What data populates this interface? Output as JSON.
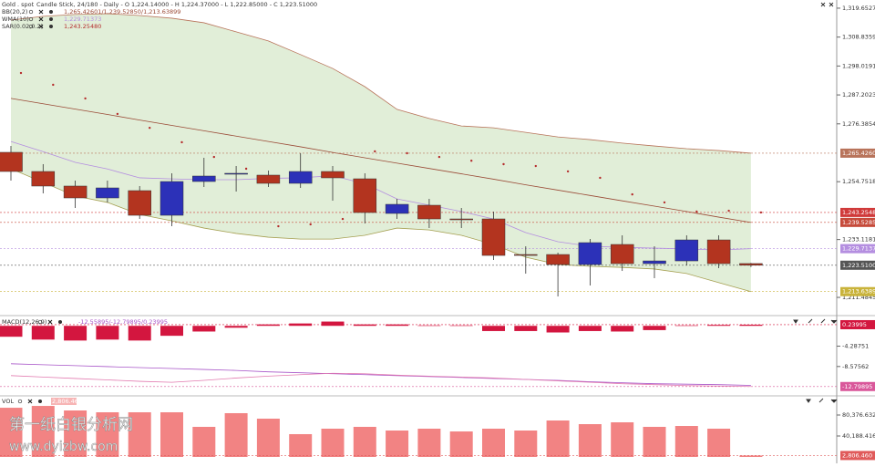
{
  "chart_data": [
    {
      "type": "candlestick",
      "title": "Gold . spot",
      "subtitle": "Candle Stick, 24/180 - Daily - O 1,224.14000 - H 1,224.37000 - L 1,222.85000 - C 1,223.51000",
      "open": [
        1265.74,
        1258.57,
        1253.12,
        1248.68,
        1251.41,
        1242.19,
        1254.82,
        1257.55,
        1257.21,
        1254.14,
        1258.57,
        1255.84,
        1242.88,
        1245.95,
        1240.83,
        1240.83,
        1227.52,
        1227.52,
        1223.77,
        1231.28,
        1224.11,
        1225.13,
        1232.98,
        1224.14
      ],
      "high": [
        1268.13,
        1261.31,
        1255.16,
        1255.16,
        1253.12,
        1257.89,
        1263.69,
        1260.62,
        1258.92,
        1265.4,
        1260.62,
        1257.89,
        1248.34,
        1248.34,
        1244.93,
        1243.56,
        1230.59,
        1228.21,
        1233.33,
        1234.69,
        1230.59,
        1234.69,
        1234.69,
        1224.37
      ],
      "low": [
        1255.16,
        1250.38,
        1244.93,
        1246.97,
        1240.83,
        1238.1,
        1252.77,
        1251.07,
        1252.77,
        1252.43,
        1247.65,
        1239.13,
        1240.83,
        1237.42,
        1237.42,
        1225.47,
        1220.36,
        1211.83,
        1215.92,
        1221.38,
        1218.65,
        1223.43,
        1222.4,
        1222.85
      ],
      "close": [
        1258.57,
        1253.12,
        1248.68,
        1252.43,
        1242.19,
        1254.82,
        1256.87,
        1257.89,
        1254.14,
        1258.57,
        1256.19,
        1243.22,
        1246.29,
        1240.83,
        1240.49,
        1227.18,
        1227.18,
        1223.77,
        1231.96,
        1224.11,
        1225.13,
        1232.98,
        1224.11,
        1223.51
      ],
      "up_color": "#2c31b8",
      "down_color": "#b3341f",
      "bands": {
        "name": "BB(20,2)",
        "value_label": "1,265.42601/1,239.52850/1,213.63899",
        "upper": [
          1315.2,
          1316.6,
          1317.3,
          1317.6,
          1316.9,
          1315.9,
          1314.2,
          1310.8,
          1307.4,
          1302.3,
          1297.1,
          1290.3,
          1281.8,
          1278.4,
          1275.6,
          1274.9,
          1273.2,
          1271.5,
          1270.5,
          1269.2,
          1268.1,
          1267.1,
          1266.4,
          1265.42601
        ],
        "middle": [
          1285.9,
          1283.9,
          1281.9,
          1279.9,
          1277.8,
          1275.8,
          1273.8,
          1271.8,
          1269.8,
          1267.8,
          1265.7,
          1263.7,
          1261.7,
          1259.7,
          1257.7,
          1255.7,
          1253.6,
          1251.6,
          1249.6,
          1247.6,
          1245.6,
          1243.6,
          1241.5,
          1239.5285
        ],
        "lower": [
          1259.6,
          1254.5,
          1249.4,
          1247.0,
          1242.5,
          1240.1,
          1237.4,
          1235.4,
          1234.0,
          1233.3,
          1233.3,
          1234.7,
          1237.4,
          1236.7,
          1234.7,
          1231.3,
          1226.5,
          1223.8,
          1223.1,
          1222.7,
          1222.1,
          1220.4,
          1217.0,
          1213.63899
        ],
        "fill": "#e1eed8",
        "upper_color": "#b8735a",
        "middle_color": "#9a4a36",
        "lower_color": "#a6a052"
      },
      "lines": [
        {
          "name": "WMA(10)",
          "value_label": "1,229.71373",
          "color": "#b48ee0",
          "values": [
            1269.8,
            1266.0,
            1262.0,
            1259.5,
            1256.2,
            1255.8,
            1255.5,
            1255.5,
            1256.0,
            1256.2,
            1257.0,
            1254.0,
            1248.3,
            1246.0,
            1243.6,
            1240.8,
            1235.7,
            1232.3,
            1230.6,
            1230.2,
            1229.9,
            1229.6,
            1229.2,
            1229.71373
          ]
        }
      ],
      "dots": [
        {
          "name": "SAR(0.02,0.2)",
          "value_label": "1,243.25480",
          "color": "#b52b2b",
          "values": [
            1295.4,
            1291.0,
            1285.9,
            1280.1,
            1274.9,
            1269.5,
            1264.0,
            1259.6,
            1238.1,
            1238.8,
            1240.8,
            1266.1,
            1265.4,
            1264.0,
            1262.6,
            1261.3,
            1260.6,
            1258.6,
            1256.2,
            1250.0,
            1247.0,
            1243.6,
            1243.9,
            1243.2548
          ]
        }
      ],
      "ylim": [
        1205.7,
        1321.0
      ],
      "yticks": [
        {
          "value": 1319.6527,
          "label": "1,319.65270"
        },
        {
          "value": 1308.83595,
          "label": "1,308.83595"
        },
        {
          "value": 1298.01913,
          "label": "1,298.01913"
        },
        {
          "value": 1287.2023,
          "label": "1,287.20230"
        },
        {
          "value": 1276.38548,
          "label": "1,276.38548"
        },
        {
          "value": 1254.75182,
          "label": "1,254.75182"
        },
        {
          "value": 1233.11817,
          "label": "1,233.11817"
        },
        {
          "value": 1211.48452,
          "label": "1,211.48452"
        }
      ],
      "price_tags": [
        {
          "value": 1265.42601,
          "label": "1,265.42601",
          "color": "#b8735a"
        },
        {
          "value": 1243.2548,
          "label": "1,243.25480",
          "color": "#d03a3a"
        },
        {
          "value": 1239.5285,
          "label": "1,239.52850",
          "color": "#c64a3a"
        },
        {
          "value": 1229.71373,
          "label": "1,229.71373",
          "color": "#b48ee0"
        },
        {
          "value": 1223.51,
          "label": "1,223.51000",
          "color": "#555555"
        },
        {
          "value": 1213.63899,
          "label": "1,213.63899",
          "color": "#c9b33a"
        }
      ]
    },
    {
      "type": "macd",
      "title": "MACD(12,26,9)",
      "value_label": "-12.55895/-12.79895/0.23995",
      "histogram": [
        -2.3,
        -2.9,
        -3.1,
        -2.9,
        -3.1,
        -2.1,
        -1.2,
        -0.4,
        0.3,
        0.5,
        0.9,
        0.3,
        0.3,
        0.1,
        0.1,
        -1.1,
        -1.1,
        -1.4,
        -1.1,
        -1.2,
        -0.9,
        0.1,
        0.2,
        0.23995
      ],
      "macd": [
        -8.0,
        -8.2,
        -8.4,
        -8.6,
        -8.8,
        -9.0,
        -9.2,
        -9.4,
        -9.7,
        -9.9,
        -10.1,
        -10.3,
        -10.5,
        -10.7,
        -10.9,
        -11.1,
        -11.3,
        -11.5,
        -11.8,
        -12.0,
        -12.2,
        -12.3,
        -12.4,
        -12.55895
      ],
      "signal": [
        -10.5,
        -10.8,
        -11.1,
        -11.4,
        -11.7,
        -11.9,
        -11.5,
        -11.0,
        -10.6,
        -10.3,
        -10.0,
        -10.1,
        -10.4,
        -10.6,
        -10.8,
        -11.0,
        -11.3,
        -11.6,
        -11.9,
        -12.2,
        -12.4,
        -12.6,
        -12.7,
        -12.79895
      ],
      "histogram_color": "#d3163f",
      "macd_color": "#a855c8",
      "signal_color": "#e27bb0",
      "ylim": [
        -14.38,
        1.39
      ],
      "yticks": [
        -4.28751,
        -8.57562
      ],
      "price_tags": [
        {
          "value": 0.23995,
          "label": "0.23995",
          "color": "#d3163f"
        },
        {
          "value": -12.79895,
          "label": "-12.79895",
          "color": "#d9579a"
        }
      ]
    },
    {
      "type": "bar",
      "title": "VOL",
      "value_label": "2,806.460",
      "values": [
        94300,
        97800,
        89100,
        85600,
        85600,
        85600,
        57700,
        83900,
        73400,
        43700,
        54200,
        57700,
        50700,
        54200,
        48900,
        54200,
        50700,
        69900,
        62900,
        66400,
        57700,
        59400,
        54200,
        2806.46
      ],
      "color": "#f28383",
      "ylim": [
        0,
        113600
      ],
      "yticks": [
        {
          "value": 80376.632,
          "label": "80,376.632"
        },
        {
          "value": 40188.416,
          "label": "40,188.416"
        }
      ],
      "price_tags": [
        {
          "value": 2806.46,
          "label": "2,806.460",
          "color": "#e05a5a"
        }
      ]
    }
  ],
  "watermark": [
    "第一纸白银分析网",
    "www.dyizbw.com"
  ]
}
